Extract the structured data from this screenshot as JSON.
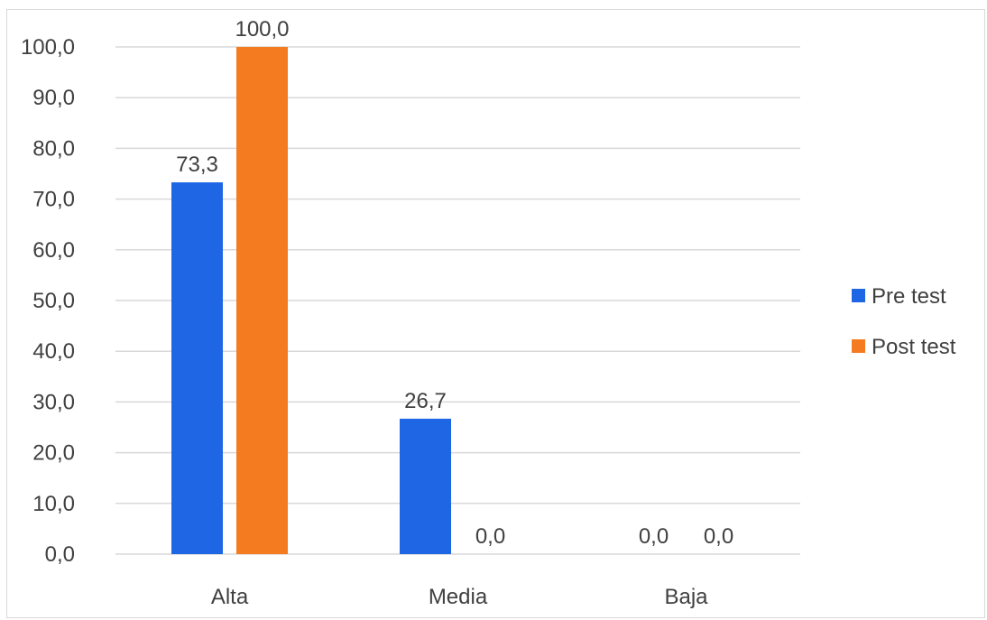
{
  "chart_data": {
    "type": "bar",
    "categories": [
      "Alta",
      "Media",
      "Baja"
    ],
    "series": [
      {
        "name": "Pre test",
        "values": [
          73.3,
          26.7,
          0.0
        ],
        "color": "#1f66e5"
      },
      {
        "name": "Post test",
        "values": [
          100.0,
          0.0,
          0.0
        ],
        "color": "#f47b20"
      }
    ],
    "data_labels": [
      [
        "73,3",
        "26,7",
        "0,0"
      ],
      [
        "100,0",
        "0,0",
        "0,0"
      ]
    ],
    "title": "",
    "xlabel": "",
    "ylabel": "",
    "ylim": [
      0,
      100
    ],
    "y_ticks": [
      0,
      10,
      20,
      30,
      40,
      50,
      60,
      70,
      80,
      90,
      100
    ],
    "y_tick_labels": [
      "0,0",
      "10,0",
      "20,0",
      "30,0",
      "40,0",
      "50,0",
      "60,0",
      "70,0",
      "80,0",
      "90,0",
      "100,0"
    ],
    "grid": true,
    "legend_position": "right"
  }
}
